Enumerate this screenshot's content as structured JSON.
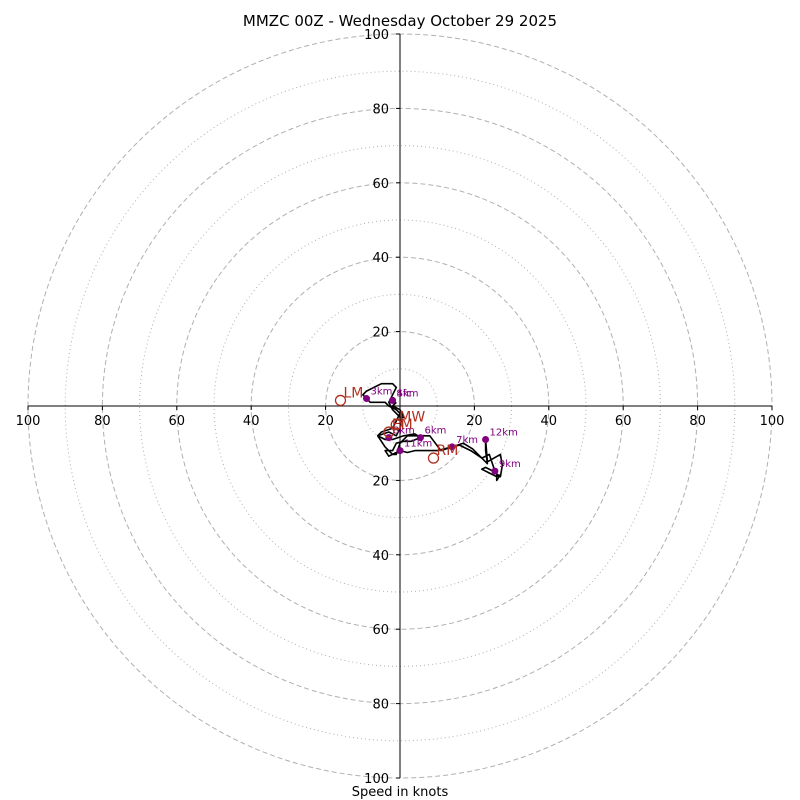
{
  "chart_data": {
    "type": "hodograph",
    "title": "MMZC 00Z - Wednesday October 29 2025",
    "xlabel": "Speed in knots",
    "range": [
      -100,
      100
    ],
    "major_rings": [
      20,
      40,
      60,
      80,
      100
    ],
    "minor_rings": [
      10,
      30,
      50,
      70,
      90
    ],
    "ticks": [
      {
        "value": -100,
        "label": "100"
      },
      {
        "value": -80,
        "label": "80"
      },
      {
        "value": -60,
        "label": "60"
      },
      {
        "value": -40,
        "label": "40"
      },
      {
        "value": -20,
        "label": "20"
      },
      {
        "value": 20,
        "label": "20"
      },
      {
        "value": 40,
        "label": "40"
      },
      {
        "value": 60,
        "label": "60"
      },
      {
        "value": 80,
        "label": "80"
      },
      {
        "value": 100,
        "label": "100"
      }
    ],
    "trace": [
      [
        0.5,
        -3
      ],
      [
        0,
        -6
      ],
      [
        -1,
        -8
      ],
      [
        -3,
        -7
      ],
      [
        -6,
        -8
      ],
      [
        -4,
        -9
      ],
      [
        -2,
        -9
      ],
      [
        1,
        -8
      ],
      [
        4,
        -7.5
      ],
      [
        5.5,
        -8.5
      ],
      [
        3,
        -9.5
      ],
      [
        1,
        -9.5
      ],
      [
        -1,
        -10
      ],
      [
        -2,
        -12
      ],
      [
        -4,
        -12
      ],
      [
        -3,
        -13.5
      ],
      [
        0,
        -12
      ],
      [
        2,
        -12.5
      ],
      [
        4,
        -12
      ],
      [
        6,
        -12
      ],
      [
        8,
        -12
      ],
      [
        10,
        -12
      ],
      [
        12,
        -11.5
      ],
      [
        14,
        -11
      ],
      [
        17,
        -10
      ],
      [
        19.5,
        -11.5
      ],
      [
        22,
        -14
      ],
      [
        23.5,
        -15.5
      ],
      [
        23,
        -12
      ],
      [
        23,
        -9
      ],
      [
        23.5,
        -15
      ],
      [
        27,
        -13
      ],
      [
        27.5,
        -16
      ],
      [
        27,
        -19
      ],
      [
        25,
        -17.5
      ],
      [
        23,
        -16.5
      ],
      [
        22,
        -17
      ],
      [
        24,
        -18
      ],
      [
        26,
        -19
      ],
      [
        27,
        -18.5
      ],
      [
        26,
        -20
      ],
      [
        26,
        -17
      ],
      [
        25.5,
        -17.5
      ],
      [
        24,
        -13
      ],
      [
        22,
        -14
      ],
      [
        19,
        -12
      ],
      [
        16,
        -10.5
      ],
      [
        14,
        -11
      ],
      [
        11,
        -12
      ],
      [
        8,
        -8
      ],
      [
        6,
        -8
      ],
      [
        4,
        -8
      ],
      [
        2,
        -8
      ],
      [
        0,
        -10
      ],
      [
        -1,
        -13
      ],
      [
        -2,
        -13
      ],
      [
        -4,
        -11
      ],
      [
        -6,
        -8
      ],
      [
        -5,
        -7
      ],
      [
        -2,
        -6
      ],
      [
        -1,
        -4
      ],
      [
        0,
        -2
      ],
      [
        -1,
        -1
      ],
      [
        -3,
        0
      ],
      [
        -4,
        1
      ],
      [
        -6,
        1
      ],
      [
        -8,
        1
      ],
      [
        -9,
        2
      ],
      [
        -10,
        3
      ],
      [
        -9,
        4
      ],
      [
        -7,
        5
      ],
      [
        -5,
        6
      ],
      [
        -3,
        6
      ],
      [
        -2,
        6
      ],
      [
        -1,
        5
      ],
      [
        -2,
        3
      ],
      [
        -3,
        1
      ],
      [
        -2,
        -1
      ],
      [
        0,
        -3
      ],
      [
        1,
        -3
      ],
      [
        0,
        -1
      ],
      [
        -2,
        0
      ],
      [
        -1,
        1
      ]
    ],
    "levels": [
      {
        "label": "Sfc",
        "u": -2,
        "v": 1.5
      },
      {
        "label": "3km",
        "u": -9,
        "v": 2
      },
      {
        "label": "4km",
        "u": -2,
        "v": 1.5
      },
      {
        "label": "6km",
        "u": 5.5,
        "v": -8.5
      },
      {
        "label": "7km",
        "u": 14,
        "v": -11
      },
      {
        "label": "8km",
        "u": -3,
        "v": -8.5
      },
      {
        "label": "9km",
        "u": 25.5,
        "v": -17.5
      },
      {
        "label": "11km",
        "u": 0,
        "v": -12
      },
      {
        "label": "12km",
        "u": 23,
        "v": -9
      }
    ],
    "motions": [
      {
        "label": "LM",
        "u": -16,
        "v": 1.5
      },
      {
        "label": "RM",
        "u": 9,
        "v": -14
      },
      {
        "label": "MW",
        "u": -1,
        "v": -5
      },
      {
        "label": "EM",
        "u": -3,
        "v": -7
      }
    ]
  },
  "colors": {
    "grid": "#b0b0b0",
    "trace": "#000000",
    "level": "#800080",
    "motion": "#b03020"
  }
}
